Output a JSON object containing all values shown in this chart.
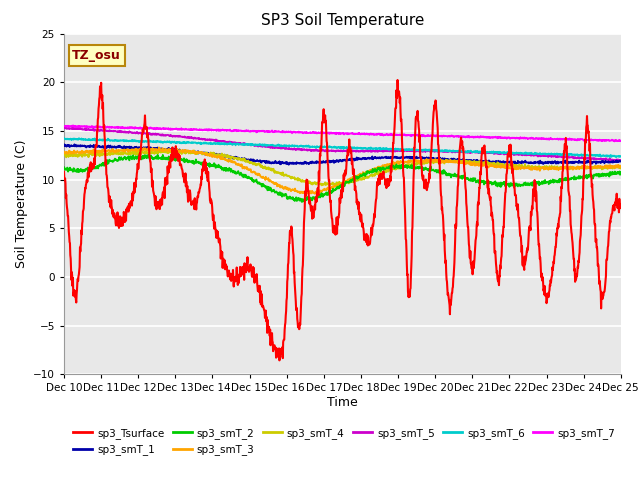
{
  "title": "SP3 Soil Temperature",
  "ylabel": "Soil Temperature (C)",
  "xlabel": "Time",
  "xlim": [
    0,
    15
  ],
  "ylim": [
    -10,
    25
  ],
  "yticks": [
    -10,
    -5,
    0,
    5,
    10,
    15,
    20,
    25
  ],
  "xtick_labels": [
    "Dec 10",
    "Dec 11",
    "Dec 12",
    "Dec 13",
    "Dec 14",
    "Dec 15",
    "Dec 16",
    "Dec 17",
    "Dec 18",
    "Dec 19",
    "Dec 20",
    "Dec 21",
    "Dec 22",
    "Dec 23",
    "Dec 24",
    "Dec 25"
  ],
  "annotation_text": "TZ_osu",
  "annotation_fg": "#8B0000",
  "annotation_bg": "#FFFFC0",
  "annotation_edge": "#B8860B",
  "series_colors": {
    "sp3_Tsurface": "#FF0000",
    "sp3_smT_1": "#0000AA",
    "sp3_smT_2": "#00CC00",
    "sp3_smT_3": "#FFA500",
    "sp3_smT_4": "#CCCC00",
    "sp3_smT_5": "#CC00CC",
    "sp3_smT_6": "#00CCCC",
    "sp3_smT_7": "#FF00FF"
  },
  "bg_color": "#E8E8E8",
  "grid_color": "#FFFFFF"
}
